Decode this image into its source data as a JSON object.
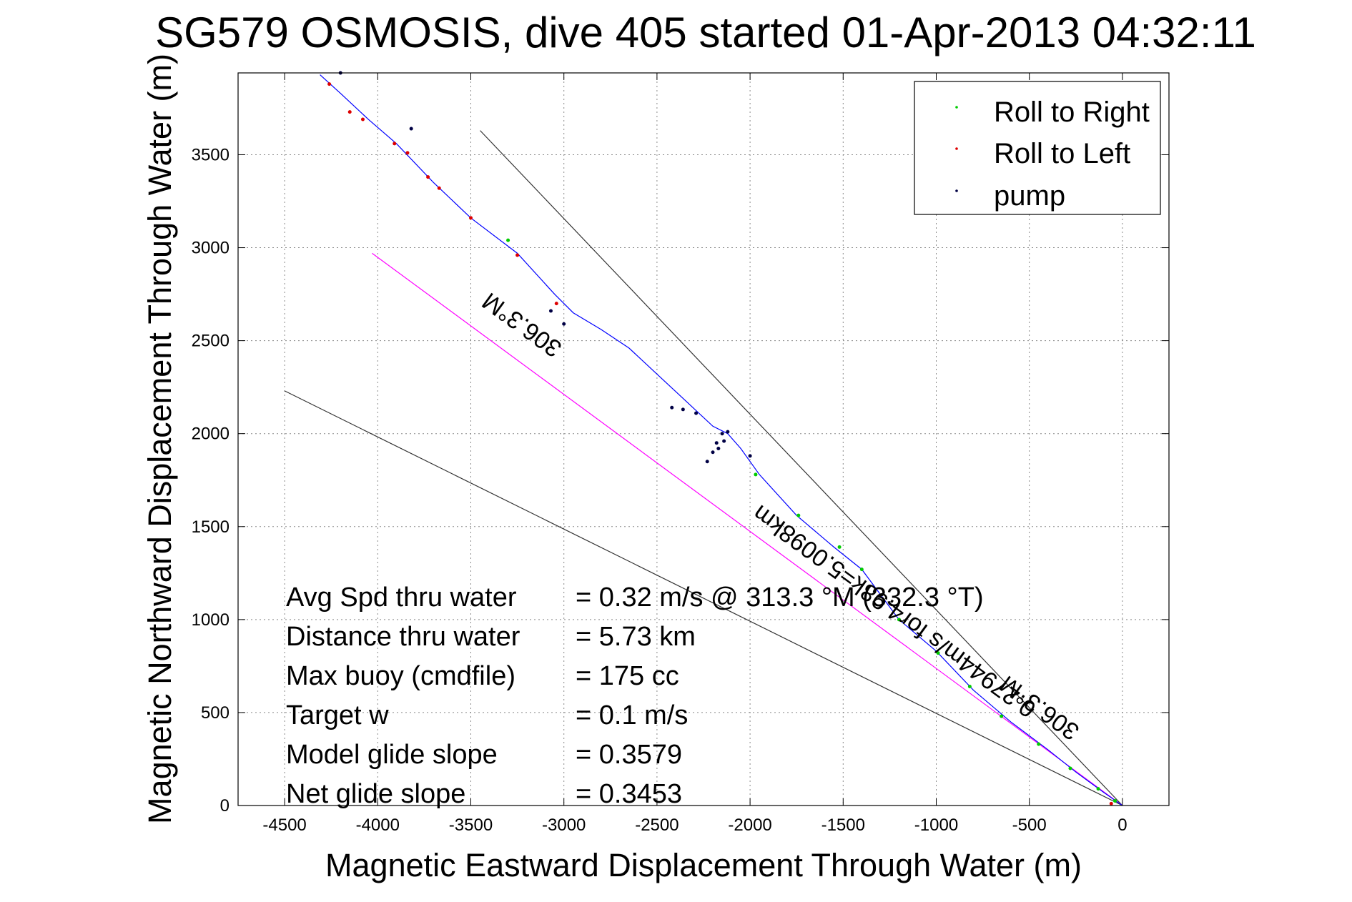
{
  "chart_data": {
    "type": "scatter",
    "title": "SG579 OSMOSIS, dive 405 started 01-Apr-2013 04:32:11",
    "xlabel": "Magnetic Eastward Displacement Through Water (m)",
    "ylabel": "Magnetic Northward Displacement Through Water (m)",
    "xlim": [
      -4750,
      250
    ],
    "ylim": [
      0,
      3940
    ],
    "xticks": [
      -4500,
      -4000,
      -3500,
      -3000,
      -2500,
      -2000,
      -1500,
      -1000,
      -500,
      0
    ],
    "yticks": [
      0,
      500,
      1000,
      1500,
      2000,
      2500,
      3000,
      3500
    ],
    "grid": true,
    "legend_position": "top-right",
    "legend": [
      {
        "label": "Roll to Right",
        "color": "#00cc00"
      },
      {
        "label": "Roll to Left",
        "color": "#dd0000"
      },
      {
        "label": "pump",
        "color": "#000044"
      }
    ],
    "track": {
      "color": "#0000ff",
      "x": [
        0,
        -100,
        -250,
        -400,
        -600,
        -800,
        -1000,
        -1200,
        -1400,
        -1550,
        -1750,
        -1950,
        -2050,
        -2120,
        -2200,
        -2350,
        -2500,
        -2650,
        -2800,
        -2950,
        -3050,
        -3250,
        -3500,
        -3700,
        -3900,
        -4050,
        -4200,
        -4310
      ],
      "y": [
        0,
        70,
        180,
        300,
        450,
        620,
        830,
        1000,
        1270,
        1390,
        1560,
        1780,
        1920,
        2000,
        2040,
        2180,
        2320,
        2460,
        2560,
        2650,
        2750,
        2970,
        3160,
        3350,
        3560,
        3690,
        3830,
        3930
      ]
    },
    "roll_right": {
      "x": [
        -40,
        -130,
        -280,
        -450,
        -650,
        -820,
        -990,
        -1200,
        -1400,
        -1520,
        -1740,
        -1970,
        -3300
      ],
      "y": [
        25,
        90,
        200,
        330,
        480,
        640,
        820,
        1000,
        1270,
        1390,
        1560,
        1780,
        3040
      ]
    },
    "roll_left": {
      "x": [
        -60,
        -3040,
        -3250,
        -3500,
        -3670,
        -3730,
        -3840,
        -3910,
        -4080,
        -4150,
        -4260
      ],
      "y": [
        10,
        2700,
        2960,
        3160,
        3320,
        3380,
        3510,
        3560,
        3690,
        3730,
        3880
      ]
    },
    "pump": {
      "x": [
        -2150,
        -2180,
        -2200,
        -2230,
        -2290,
        -2360,
        -2420,
        -2000,
        -2120,
        -2140,
        -2170,
        -3070,
        -3000,
        -3820,
        -4200
      ],
      "y": [
        2000,
        1950,
        1900,
        1850,
        2110,
        2130,
        2140,
        1880,
        2010,
        1960,
        1920,
        2660,
        2590,
        3640,
        3940
      ]
    },
    "reference_lines": [
      {
        "color": "#333333",
        "x": [
          0,
          -3450
        ],
        "y": [
          0,
          3630
        ]
      },
      {
        "color": "#333333",
        "x": [
          0,
          -4500
        ],
        "y": [
          0,
          2230
        ]
      },
      {
        "color": "#ff00ff",
        "x": [
          0,
          -4030
        ],
        "y": [
          0,
          2970
        ]
      }
    ],
    "line_labels": [
      {
        "text": "306.3°M",
        "x": -3200,
        "y": 2620,
        "angle": 216
      },
      {
        "text": "306.3°M",
        "x": -420,
        "y": 560,
        "angle": 216
      },
      {
        "text": "0.27944m/s for4.98k=5.0098km",
        "x": -1200,
        "y": 1080,
        "angle": 216
      }
    ],
    "annotations": [
      {
        "label": "Avg Spd thru water",
        "value": "=  0.32 m/s @ 313.3 °M (332.3 °T)"
      },
      {
        "label": "Distance thru water",
        "value": "=  5.73 km"
      },
      {
        "label": "Max buoy (cmdfile)",
        "value": "= 175 cc"
      },
      {
        "label": "Target w",
        "value": "= 0.1 m/s"
      },
      {
        "label": "Model glide slope",
        "value": "= 0.3579"
      },
      {
        "label": "Net glide slope",
        "value": "= 0.3453"
      }
    ]
  }
}
